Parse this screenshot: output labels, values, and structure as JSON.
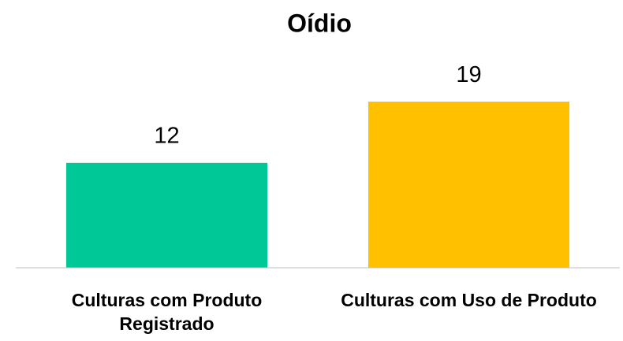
{
  "chart_data": {
    "type": "bar",
    "title": "Oídio",
    "categories": [
      "Culturas com Produto Registrado",
      "Culturas com Uso de Produto"
    ],
    "values": [
      12,
      19
    ],
    "colors": [
      "#00c896",
      "#ffc000"
    ],
    "ylim": [
      0,
      20
    ]
  }
}
